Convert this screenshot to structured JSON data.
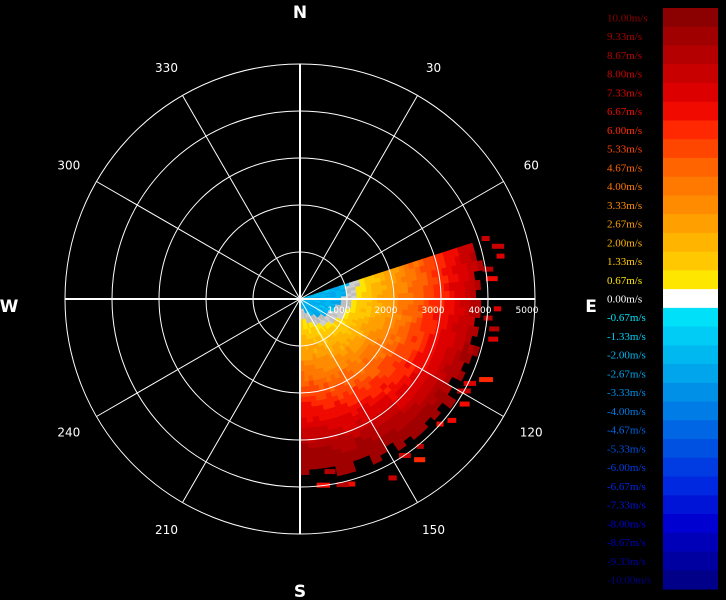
{
  "chart_data": {
    "type": "polar-radar",
    "title": "",
    "cardinals": {
      "north": "N",
      "east": "E",
      "south": "S",
      "west": "W"
    },
    "azimuth_labels": [
      "30",
      "60",
      "120",
      "150",
      "210",
      "240",
      "300",
      "330"
    ],
    "range_labels": [
      "1000",
      "2000",
      "3000",
      "4000",
      "5000"
    ],
    "range_max": 5000,
    "legend": {
      "entries": [
        {
          "label": "10.00m/s",
          "color": "#8b0000"
        },
        {
          "label": "9.33m/s",
          "color": "#a00000"
        },
        {
          "label": "8.67m/s",
          "color": "#b40000"
        },
        {
          "label": "8.00m/s",
          "color": "#c80000"
        },
        {
          "label": "7.33m/s",
          "color": "#dc0000"
        },
        {
          "label": "6.67m/s",
          "color": "#f00a00"
        },
        {
          "label": "6.00m/s",
          "color": "#ff2800"
        },
        {
          "label": "5.33m/s",
          "color": "#ff4600"
        },
        {
          "label": "4.67m/s",
          "color": "#ff6400"
        },
        {
          "label": "4.00m/s",
          "color": "#ff7800"
        },
        {
          "label": "3.33m/s",
          "color": "#ff8c00"
        },
        {
          "label": "2.67m/s",
          "color": "#ffa000"
        },
        {
          "label": "2.00m/s",
          "color": "#ffb400"
        },
        {
          "label": "1.33m/s",
          "color": "#ffc800"
        },
        {
          "label": "0.67m/s",
          "color": "#ffe600"
        },
        {
          "label": "0.00m/s",
          "color": "#ffffff"
        },
        {
          "label": "-0.67m/s",
          "color": "#00e0f8"
        },
        {
          "label": "-1.33m/s",
          "color": "#00ccf5"
        },
        {
          "label": "-2.00m/s",
          "color": "#00b8f0"
        },
        {
          "label": "-2.67m/s",
          "color": "#00a5ec"
        },
        {
          "label": "-3.33m/s",
          "color": "#0090e8"
        },
        {
          "label": "-4.00m/s",
          "color": "#007ce6"
        },
        {
          "label": "-4.67m/s",
          "color": "#0066e4"
        },
        {
          "label": "-5.33m/s",
          "color": "#0050e2"
        },
        {
          "label": "-6.00m/s",
          "color": "#003ce2"
        },
        {
          "label": "-6.67m/s",
          "color": "#0028e0"
        },
        {
          "label": "-7.33m/s",
          "color": "#0014d8"
        },
        {
          "label": "-8.00m/s",
          "color": "#0000d0"
        },
        {
          "label": "-8.67m/s",
          "color": "#0000b8"
        },
        {
          "label": "-9.33m/s",
          "color": "#0000a0"
        },
        {
          "label": "-10.00m/s",
          "color": "#000088"
        }
      ]
    },
    "echo_sector": {
      "azimuth_start_deg": 72,
      "azimuth_end_deg": 180,
      "range_max": 3850,
      "pattern": "negative near radar at low azimuths (cyan), near-zero band (gray/white), increasing positive velocity with range (yellow to dark red)"
    }
  }
}
